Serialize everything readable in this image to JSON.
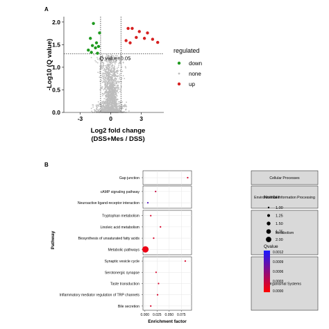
{
  "panels": {
    "a": "A",
    "b": "B"
  },
  "chart_data": [
    {
      "type": "scatter",
      "panel": "A",
      "xlabel": "Log2 fold change",
      "xlabel2": "(DSS+Mes / DSS)",
      "ylabel": "-Log10 (Q value)",
      "xlim": [
        -4.6,
        5.2
      ],
      "ylim": [
        0,
        2.12
      ],
      "xticks": [
        -3,
        0,
        3
      ],
      "yticks": [
        0.0,
        0.5,
        1.0,
        1.5,
        2.0
      ],
      "ytick_labels": [
        "0.0",
        "0.5",
        "1.0",
        "1.5",
        "2.0"
      ],
      "vlines": [
        -1,
        1
      ],
      "hline": 1.3,
      "annotation": "Q value=0.05",
      "grid": false,
      "legend": {
        "title": "regulated",
        "position": "right",
        "entries": [
          {
            "label": "down",
            "color": "#1f9a1f"
          },
          {
            "label": "none",
            "color": "#bdbdbd"
          },
          {
            "label": "up",
            "color": "#d62020"
          }
        ]
      },
      "series": [
        {
          "name": "down",
          "color": "#1f9a1f",
          "points": [
            [
              -1.7,
              1.97
            ],
            [
              -1.1,
              1.76
            ],
            [
              -2.0,
              1.64
            ],
            [
              -1.4,
              1.54
            ],
            [
              -1.8,
              1.48
            ],
            [
              -1.2,
              1.46
            ],
            [
              -1.5,
              1.43
            ],
            [
              -2.2,
              1.38
            ],
            [
              -1.9,
              1.33
            ],
            [
              -1.3,
              1.31
            ]
          ]
        },
        {
          "name": "up",
          "color": "#d62020",
          "points": [
            [
              1.7,
              1.86
            ],
            [
              2.1,
              1.86
            ],
            [
              2.8,
              1.79
            ],
            [
              3.6,
              1.76
            ],
            [
              2.5,
              1.66
            ],
            [
              3.3,
              1.64
            ],
            [
              4.1,
              1.62
            ],
            [
              1.5,
              1.59
            ],
            [
              4.6,
              1.55
            ],
            [
              1.9,
              1.54
            ]
          ]
        }
      ]
    },
    {
      "type": "scatter",
      "panel": "B",
      "xlabel": "Enrichment factor",
      "ylabel": "Pathway",
      "xlim": [
        -0.004,
        0.096
      ],
      "xticks": [
        0.0,
        0.025,
        0.05,
        0.075
      ],
      "xtick_labels": [
        "0.000",
        "0.025",
        "0.050",
        "0.075"
      ],
      "grid": true,
      "facets": [
        {
          "label": "Cellular Processes",
          "pathways": [
            {
              "name": "Gap junction",
              "x": 0.088,
              "number": 1,
              "qvalue": 0.0002
            }
          ]
        },
        {
          "label": "Environmental Information Processing",
          "pathways": [
            {
              "name": "cAMP signaling pathway",
              "x": 0.022,
              "number": 1,
              "qvalue": 0.0003
            },
            {
              "name": "Neuroactive ligand-receptor interaction",
              "x": 0.006,
              "number": 1,
              "qvalue": 0.0009
            }
          ]
        },
        {
          "label": "Metabolism",
          "pathways": [
            {
              "name": "Tryptophan metabolism",
              "x": 0.012,
              "number": 1,
              "qvalue": 0.0002
            },
            {
              "name": "Linoleic acid metabolism",
              "x": 0.032,
              "number": 1,
              "qvalue": 0.0002
            },
            {
              "name": "Biosynthesis of unsaturated fatty acids",
              "x": 0.018,
              "number": 1,
              "qvalue": 0.0002
            },
            {
              "name": "Metabolic pathways",
              "x": 0.001,
              "number": 2,
              "qvalue": 0.0001
            }
          ]
        },
        {
          "label": "Organismal Systems",
          "pathways": [
            {
              "name": "Synaptic vesicle cycle",
              "x": 0.083,
              "number": 1,
              "qvalue": 0.0002
            },
            {
              "name": "Serotonergic synapse",
              "x": 0.023,
              "number": 1,
              "qvalue": 0.0002
            },
            {
              "name": "Taste transduction",
              "x": 0.028,
              "number": 1,
              "qvalue": 0.0002
            },
            {
              "name": "Inflammatory mediator regulation of TRP channels",
              "x": 0.026,
              "number": 1,
              "qvalue": 0.0002
            },
            {
              "name": "Bile secretion",
              "x": 0.012,
              "number": 1,
              "qvalue": 0.0002
            }
          ]
        }
      ],
      "legend_number": {
        "title": "Number",
        "values": [
          "1.00",
          "1.25",
          "1.50",
          "1.75",
          "2.00"
        ]
      },
      "legend_qvalue": {
        "title": "Qvalue",
        "labels": [
          "0.0012",
          "0.0009",
          "0.0006",
          "0.0003",
          "0.0000"
        ],
        "color_high": "#1a1aff",
        "color_low": "#ff0000"
      }
    }
  ]
}
